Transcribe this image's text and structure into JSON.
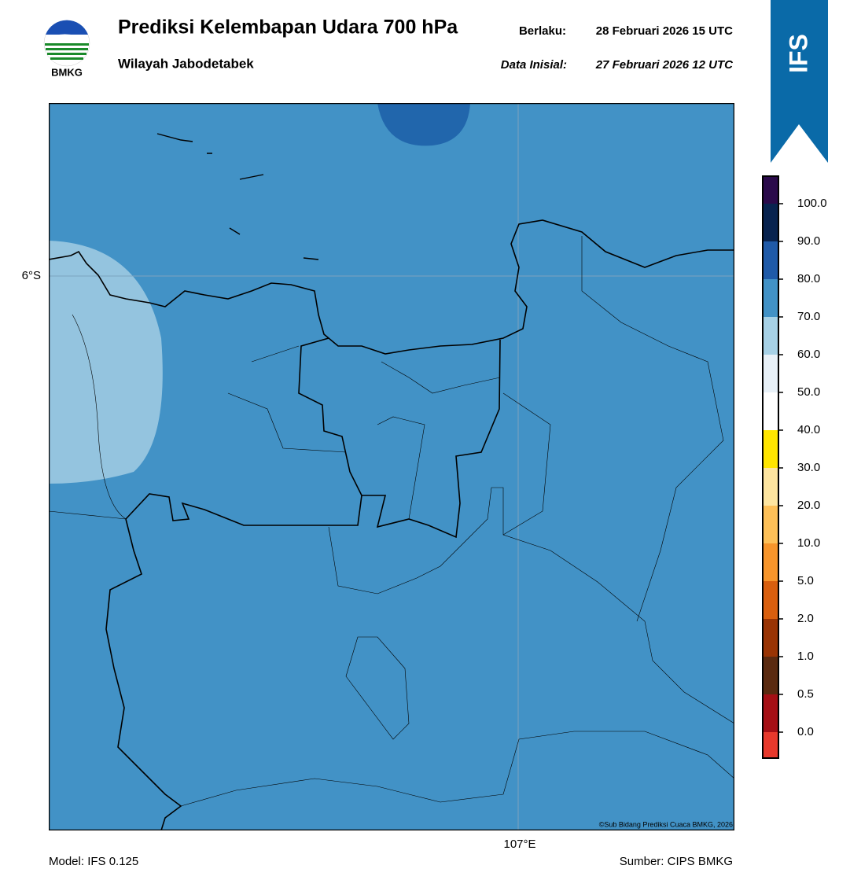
{
  "header": {
    "title": "Prediksi Kelembapan Udara 700 hPa",
    "subtitle": "Wilayah Jabodetabek",
    "valid_label": "Berlaku:",
    "valid_time": "28 Februari 2026 15 UTC",
    "init_label": "Data Inisial:",
    "init_time": "27 Februari 2026 12 UTC",
    "logo_text": "BMKG",
    "badge": "IFS"
  },
  "map": {
    "lat_label": "6°S",
    "lon_label": "107°E",
    "credit": "©Sub Bidang Prediksi Cuaca BMKG, 2026"
  },
  "colorbar": {
    "labels": [
      "0.0",
      "0.5",
      "1.0",
      "2.0",
      "5.0",
      "10.0",
      "20.0",
      "30.0",
      "40.0",
      "50.0",
      "60.0",
      "70.0",
      "80.0",
      "90.0",
      "100.0"
    ]
  },
  "footer": {
    "model": "Model: IFS 0.125",
    "source": "Sumber: CIPS BMKG"
  }
}
